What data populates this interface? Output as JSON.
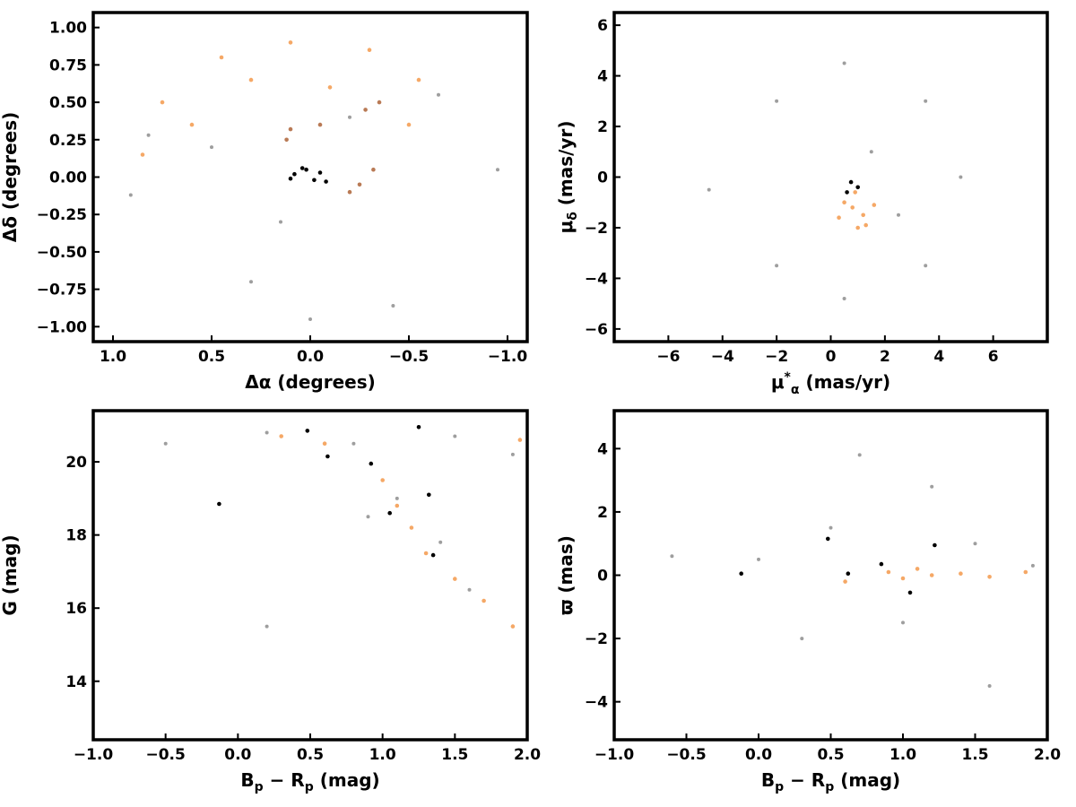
{
  "colors": {
    "field": "#9e9e9e",
    "member_orange": "#f5a866",
    "member_brown": "#b97a55",
    "member_black": "#000000",
    "frame": "#000000"
  },
  "chart_data": [
    {
      "type": "scatter",
      "xlabel": "Δα (degrees)",
      "ylabel": "Δδ (degrees)",
      "xlim": [
        1.1,
        -1.1
      ],
      "ylim": [
        -1.1,
        1.1
      ],
      "xticks": [
        1.0,
        0.5,
        0.0,
        -0.5,
        -1.0
      ],
      "xtick_labels": [
        "1.0",
        "0.5",
        "0.0",
        "−0.5",
        "−1.0"
      ],
      "yticks": [
        1.0,
        0.75,
        0.5,
        0.25,
        0.0,
        -0.25,
        -0.5,
        -0.75,
        -1.0
      ],
      "ytick_labels": [
        "1.00",
        "0.75",
        "0.50",
        "0.25",
        "0.00",
        "−0.25",
        "−0.50",
        "−0.75",
        "−1.00"
      ],
      "grid": false,
      "series": [
        {
          "role": "field",
          "color": "#9e9e9e",
          "points": [
            [
              0.82,
              0.28
            ],
            [
              -0.65,
              0.55
            ],
            [
              0.3,
              -0.7
            ],
            [
              -0.42,
              -0.86
            ],
            [
              0.0,
              -0.95
            ],
            [
              0.91,
              -0.12
            ],
            [
              -0.95,
              0.05
            ],
            [
              0.5,
              0.2
            ],
            [
              -0.2,
              0.4
            ],
            [
              0.15,
              -0.3
            ]
          ]
        },
        {
          "role": "members",
          "color": "#f5a866",
          "points": [
            [
              0.75,
              0.5
            ],
            [
              0.45,
              0.8
            ],
            [
              0.1,
              0.9
            ],
            [
              -0.3,
              0.85
            ],
            [
              -0.55,
              0.65
            ],
            [
              0.85,
              0.15
            ],
            [
              0.6,
              0.35
            ],
            [
              -0.1,
              0.6
            ],
            [
              0.3,
              0.65
            ],
            [
              -0.5,
              0.35
            ]
          ]
        },
        {
          "role": "members",
          "color": "#b97a55",
          "points": [
            [
              0.12,
              0.25
            ],
            [
              0.1,
              0.32
            ],
            [
              -0.05,
              0.35
            ],
            [
              -0.28,
              0.45
            ],
            [
              -0.35,
              0.5
            ],
            [
              -0.25,
              -0.05
            ],
            [
              -0.32,
              0.05
            ],
            [
              -0.2,
              -0.1
            ]
          ]
        },
        {
          "role": "members",
          "color": "#000000",
          "points": [
            [
              0.08,
              0.02
            ],
            [
              0.02,
              0.05
            ],
            [
              -0.05,
              0.03
            ],
            [
              -0.08,
              -0.03
            ],
            [
              0.1,
              -0.01
            ],
            [
              -0.02,
              -0.02
            ],
            [
              0.04,
              0.06
            ]
          ]
        }
      ]
    },
    {
      "type": "scatter",
      "xlabel": "μ*α (mas/yr)",
      "ylabel": "μδ (mas/yr)",
      "xlim": [
        -8,
        8
      ],
      "ylim": [
        -6.5,
        6.5
      ],
      "xticks": [
        -6,
        -4,
        -2,
        0,
        2,
        4,
        6
      ],
      "xtick_labels": [
        "−6",
        "−4",
        "−2",
        "0",
        "2",
        "4",
        "6"
      ],
      "yticks": [
        6,
        4,
        2,
        0,
        -2,
        -4,
        -6
      ],
      "ytick_labels": [
        "6",
        "4",
        "2",
        "0",
        "−2",
        "−4",
        "−6"
      ],
      "grid": false,
      "series": [
        {
          "role": "field",
          "color": "#9e9e9e",
          "points": [
            [
              -4.5,
              -0.5
            ],
            [
              -2.0,
              3.0
            ],
            [
              0.5,
              4.5
            ],
            [
              3.5,
              3.0
            ],
            [
              4.8,
              0.0
            ],
            [
              3.5,
              -3.5
            ],
            [
              0.5,
              -4.8
            ],
            [
              -2.0,
              -3.5
            ],
            [
              1.5,
              1.0
            ],
            [
              2.5,
              -1.5
            ]
          ]
        },
        {
          "role": "members",
          "color": "#f5a866",
          "points": [
            [
              0.8,
              -1.2
            ],
            [
              1.2,
              -1.5
            ],
            [
              0.5,
              -1.0
            ],
            [
              1.0,
              -2.0
            ],
            [
              0.3,
              -1.6
            ],
            [
              1.6,
              -1.1
            ],
            [
              0.9,
              -0.6
            ],
            [
              1.3,
              -1.9
            ]
          ]
        },
        {
          "role": "members",
          "color": "#000000",
          "points": [
            [
              0.75,
              -0.2
            ],
            [
              1.0,
              -0.4
            ],
            [
              0.6,
              -0.6
            ]
          ]
        }
      ]
    },
    {
      "type": "scatter",
      "xlabel": "Bp − Rp (mag)",
      "ylabel": "G (mag)",
      "xlim": [
        -1.0,
        2.0
      ],
      "ylim": [
        12.4,
        21.4
      ],
      "xticks": [
        -1.0,
        -0.5,
        0.0,
        0.5,
        1.0,
        1.5,
        2.0
      ],
      "xtick_labels": [
        "−1.0",
        "−0.5",
        "0.0",
        "0.5",
        "1.0",
        "1.5",
        "2.0"
      ],
      "yticks": [
        20,
        18,
        16,
        14
      ],
      "ytick_labels": [
        "20",
        "18",
        "16",
        "14"
      ],
      "grid": false,
      "series": [
        {
          "role": "field",
          "color": "#9e9e9e",
          "points": [
            [
              0.2,
              20.8
            ],
            [
              0.8,
              20.5
            ],
            [
              1.5,
              20.7
            ],
            [
              1.9,
              20.2
            ],
            [
              1.1,
              19.0
            ],
            [
              1.4,
              17.8
            ],
            [
              0.9,
              18.5
            ],
            [
              -0.5,
              20.5
            ],
            [
              1.6,
              16.5
            ],
            [
              0.2,
              15.5
            ]
          ]
        },
        {
          "role": "members",
          "color": "#f5a866",
          "points": [
            [
              1.0,
              19.5
            ],
            [
              1.1,
              18.8
            ],
            [
              1.2,
              18.2
            ],
            [
              1.3,
              17.5
            ],
            [
              1.5,
              16.8
            ],
            [
              1.7,
              16.2
            ],
            [
              1.9,
              15.5
            ],
            [
              0.3,
              20.7
            ],
            [
              0.6,
              20.5
            ],
            [
              1.95,
              20.6
            ]
          ]
        },
        {
          "role": "members",
          "color": "#000000",
          "points": [
            [
              0.48,
              20.85
            ],
            [
              0.62,
              20.15
            ],
            [
              0.92,
              19.95
            ],
            [
              1.25,
              20.95
            ],
            [
              1.32,
              19.1
            ],
            [
              1.05,
              18.6
            ],
            [
              1.35,
              17.45
            ],
            [
              -0.13,
              18.85
            ]
          ]
        }
      ]
    },
    {
      "type": "scatter",
      "xlabel": "Bp − Rp (mag)",
      "ylabel": "ϖ (mas)",
      "xlim": [
        -1.0,
        2.0
      ],
      "ylim": [
        -5.2,
        5.2
      ],
      "xticks": [
        -1.0,
        -0.5,
        0.0,
        0.5,
        1.0,
        1.5,
        2.0
      ],
      "xtick_labels": [
        "−1.0",
        "−0.5",
        "0.0",
        "0.5",
        "1.0",
        "1.5",
        "2.0"
      ],
      "yticks": [
        4,
        2,
        0,
        -2,
        -4
      ],
      "ytick_labels": [
        "4",
        "2",
        "0",
        "−2",
        "−4"
      ],
      "grid": false,
      "series": [
        {
          "role": "field",
          "color": "#9e9e9e",
          "points": [
            [
              0.0,
              0.5
            ],
            [
              0.5,
              1.5
            ],
            [
              1.0,
              -1.5
            ],
            [
              1.5,
              1.0
            ],
            [
              1.9,
              0.3
            ],
            [
              0.3,
              -2.0
            ],
            [
              1.2,
              2.8
            ],
            [
              -0.6,
              0.6
            ],
            [
              1.6,
              -3.5
            ],
            [
              0.7,
              3.8
            ]
          ]
        },
        {
          "role": "members",
          "color": "#f5a866",
          "points": [
            [
              0.9,
              0.1
            ],
            [
              1.0,
              -0.1
            ],
            [
              1.1,
              0.2
            ],
            [
              1.2,
              0.0
            ],
            [
              1.4,
              0.05
            ],
            [
              1.6,
              -0.05
            ],
            [
              0.6,
              -0.2
            ],
            [
              1.85,
              0.1
            ]
          ]
        },
        {
          "role": "members",
          "color": "#000000",
          "points": [
            [
              0.48,
              1.15
            ],
            [
              1.22,
              0.95
            ],
            [
              0.62,
              0.05
            ],
            [
              0.85,
              0.35
            ],
            [
              1.05,
              -0.55
            ],
            [
              -0.12,
              0.05
            ]
          ]
        }
      ]
    }
  ]
}
